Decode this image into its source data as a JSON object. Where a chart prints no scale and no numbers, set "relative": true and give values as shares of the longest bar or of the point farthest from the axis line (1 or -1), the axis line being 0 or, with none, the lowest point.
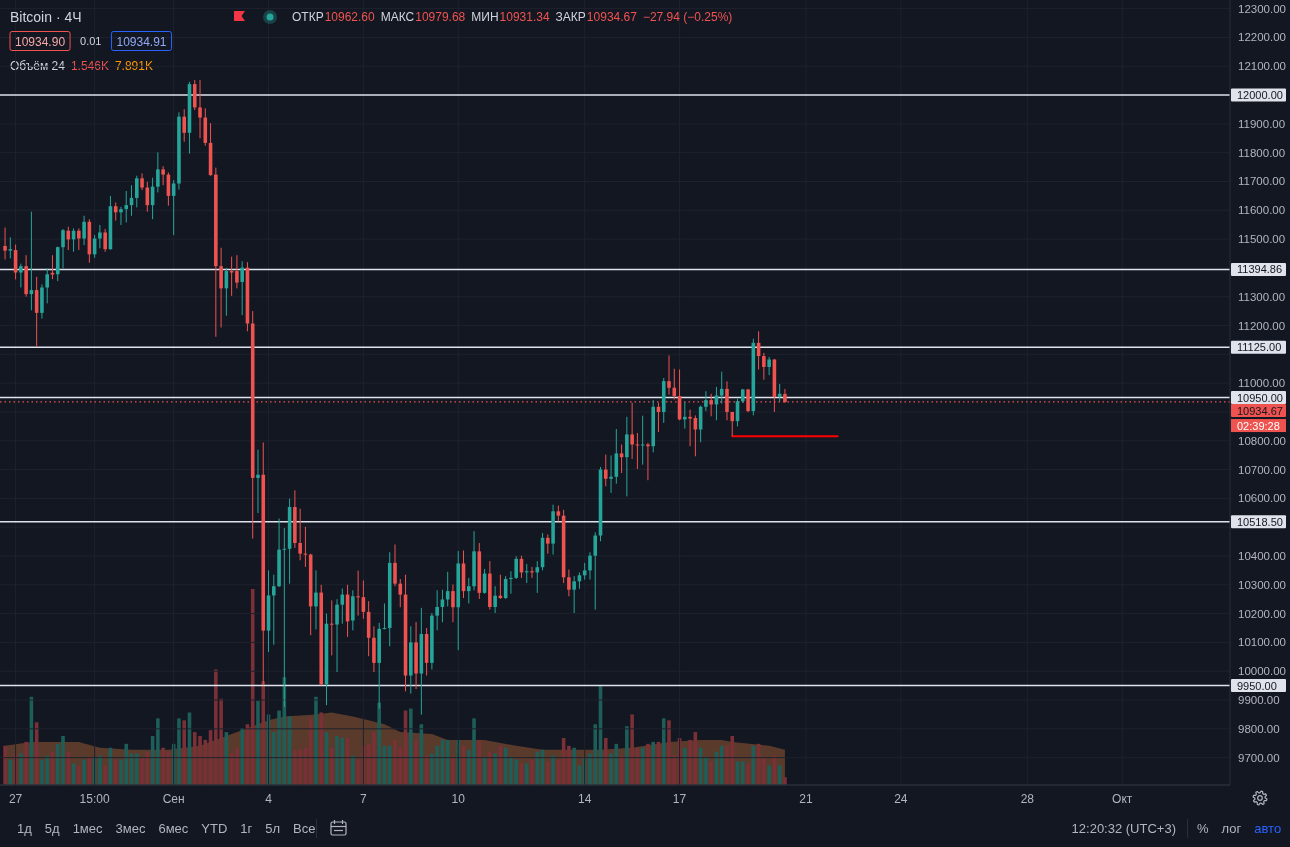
{
  "chart_data": [
    {
      "type": "candlestick",
      "title": "Bitcoin · 4Ч",
      "x": [
        "--08-26T19:00",
        "--08-26T23:00",
        "--08-27T03:00",
        "--08-27T07:00",
        "--08-27T11:00",
        "--08-27T15:00",
        "--08-27T19:00",
        "--08-27T23:00",
        "--08-28T03:00",
        "--08-28T07:00",
        "--08-28T11:00",
        "--08-28T15:00",
        "--08-28T19:00",
        "--08-28T23:00",
        "--08-29T03:00",
        "--08-29T07:00",
        "--08-29T11:00",
        "--08-29T15:00",
        "--08-29T19:00",
        "--08-29T23:00",
        "--08-30T03:00",
        "--08-30T07:00",
        "--08-30T11:00",
        "--08-30T15:00",
        "--08-30T19:00",
        "--08-30T23:00",
        "--08-31T03:00",
        "--08-31T07:00",
        "--08-31T11:00",
        "--08-31T15:00",
        "--08-31T19:00",
        "--08-31T23:00",
        "--09-01T03:00",
        "--09-01T07:00",
        "--09-01T11:00",
        "--09-01T15:00",
        "--09-01T19:00",
        "--09-01T23:00",
        "--09-02T03:00",
        "--09-02T07:00",
        "--09-02T11:00",
        "--09-02T15:00",
        "--09-02T19:00",
        "--09-02T23:00",
        "--09-03T03:00",
        "--09-03T07:00",
        "--09-03T11:00",
        "--09-03T15:00",
        "--09-03T19:00",
        "--09-03T23:00",
        "--09-04T03:00",
        "--09-04T07:00",
        "--09-04T11:00",
        "--09-04T15:00",
        "--09-04T19:00",
        "--09-04T23:00",
        "--09-05T03:00",
        "--09-05T07:00",
        "--09-05T11:00",
        "--09-05T15:00",
        "--09-05T19:00",
        "--09-05T23:00",
        "--09-06T03:00",
        "--09-06T07:00",
        "--09-06T11:00",
        "--09-06T15:00",
        "--09-06T19:00",
        "--09-06T23:00",
        "--09-07T03:00",
        "--09-07T07:00",
        "--09-07T11:00",
        "--09-07T15:00",
        "--09-07T19:00",
        "--09-07T23:00",
        "--09-08T03:00",
        "--09-08T07:00",
        "--09-08T11:00",
        "--09-08T15:00",
        "--09-08T19:00",
        "--09-08T23:00",
        "--09-09T03:00",
        "--09-09T07:00",
        "--09-09T11:00",
        "--09-09T15:00",
        "--09-09T19:00",
        "--09-09T23:00",
        "--09-10T03:00",
        "--09-10T07:00",
        "--09-10T11:00",
        "--09-10T15:00",
        "--09-10T19:00",
        "--09-10T23:00",
        "--09-11T03:00",
        "--09-11T07:00",
        "--09-11T11:00",
        "--09-11T15:00",
        "--09-11T19:00",
        "--09-11T23:00",
        "--09-12T03:00",
        "--09-12T07:00",
        "--09-12T11:00",
        "--09-12T15:00",
        "--09-12T19:00",
        "--09-12T23:00",
        "--09-13T03:00",
        "--09-13T07:00",
        "--09-13T11:00",
        "--09-13T15:00",
        "--09-13T19:00",
        "--09-13T23:00",
        "--09-14T03:00",
        "--09-14T07:00",
        "--09-14T11:00",
        "--09-14T15:00",
        "--09-14T19:00",
        "--09-14T23:00",
        "--09-15T03:00",
        "--09-15T07:00",
        "--09-15T11:00",
        "--09-15T15:00",
        "--09-15T19:00",
        "--09-15T23:00",
        "--09-16T03:00",
        "--09-16T07:00",
        "--09-16T11:00",
        "--09-16T15:00",
        "--09-16T19:00",
        "--09-16T23:00",
        "--09-17T03:00",
        "--09-17T07:00",
        "--09-17T11:00",
        "--09-17T15:00",
        "--09-17T19:00",
        "--09-17T23:00",
        "--09-18T03:00",
        "--09-18T07:00",
        "--09-18T11:00",
        "--09-18T15:00",
        "--09-18T19:00",
        "--09-18T23:00",
        "--09-19T03:00",
        "--09-19T07:00",
        "--09-19T11:00",
        "--09-19T15:00",
        "--09-19T19:00",
        "--09-19T23:00",
        "--09-20T03:00",
        "--09-20T07:00",
        "--09-20T11:00"
      ],
      "ohlc": [
        [
          11476,
          11540,
          11429,
          11460
        ],
        [
          11460,
          11506,
          11433,
          11465
        ],
        [
          11462,
          11481,
          11360,
          11384
        ],
        [
          11384,
          11415,
          11332,
          11406
        ],
        [
          11406,
          11444,
          11300,
          11309
        ],
        [
          11309,
          11595,
          11253,
          11323
        ],
        [
          11323,
          11369,
          11126,
          11244
        ],
        [
          11244,
          11343,
          11224,
          11332
        ],
        [
          11332,
          11398,
          11277,
          11378
        ],
        [
          11383,
          11444,
          11361,
          11377
        ],
        [
          11378,
          11474,
          11354,
          11472
        ],
        [
          11472,
          11535,
          11398,
          11531
        ],
        [
          11529,
          11543,
          11462,
          11499
        ],
        [
          11499,
          11537,
          11456,
          11529
        ],
        [
          11529,
          11537,
          11462,
          11502
        ],
        [
          11502,
          11581,
          11479,
          11560
        ],
        [
          11560,
          11569,
          11418,
          11447
        ],
        [
          11447,
          11514,
          11435,
          11502
        ],
        [
          11502,
          11549,
          11468,
          11523
        ],
        [
          11523,
          11535,
          11456,
          11465
        ],
        [
          11465,
          11650,
          11463,
          11614
        ],
        [
          11614,
          11627,
          11564,
          11593
        ],
        [
          11593,
          11612,
          11549,
          11604
        ],
        [
          11604,
          11667,
          11558,
          11618
        ],
        [
          11618,
          11687,
          11581,
          11643
        ],
        [
          11643,
          11720,
          11610,
          11711
        ],
        [
          11711,
          11728,
          11670,
          11679
        ],
        [
          11679,
          11699,
          11595,
          11618
        ],
        [
          11618,
          11713,
          11569,
          11682
        ],
        [
          11682,
          11801,
          11662,
          11742
        ],
        [
          11742,
          11753,
          11687,
          11724
        ],
        [
          11724,
          11731,
          11616,
          11650
        ],
        [
          11650,
          11705,
          11514,
          11693
        ],
        [
          11693,
          11940,
          11672,
          11925
        ],
        [
          11925,
          11951,
          11838,
          11869
        ],
        [
          11869,
          12046,
          11797,
          12038
        ],
        [
          12038,
          12052,
          11948,
          11957
        ],
        [
          11957,
          12052,
          11850,
          11922
        ],
        [
          11922,
          11954,
          11824,
          11834
        ],
        [
          11834,
          11902,
          11720,
          11722
        ],
        [
          11724,
          11748,
          11161,
          11406
        ],
        [
          11406,
          11470,
          11193,
          11329
        ],
        [
          11329,
          11400,
          11234,
          11389
        ],
        [
          11389,
          11439,
          11303,
          11384
        ],
        [
          11389,
          11444,
          11329,
          11349
        ],
        [
          11351,
          11423,
          11236,
          11401
        ],
        [
          11401,
          11420,
          11180,
          11207
        ],
        [
          11207,
          11250,
          10460,
          10671
        ],
        [
          10671,
          10769,
          10549,
          10682
        ],
        [
          10682,
          10794,
          9951,
          10141
        ],
        [
          10141,
          10350,
          10067,
          10263
        ],
        [
          10263,
          10335,
          10092,
          10295
        ],
        [
          10295,
          10530,
          10292,
          10422
        ],
        [
          10422,
          10497,
          9876,
          10425
        ],
        [
          10425,
          10599,
          10304,
          10570
        ],
        [
          10570,
          10628,
          10428,
          10445
        ],
        [
          10445,
          10564,
          10385,
          10408
        ],
        [
          10408,
          10501,
          10362,
          10405
        ],
        [
          10405,
          10408,
          10125,
          10225
        ],
        [
          10225,
          10350,
          10145,
          10273
        ],
        [
          10273,
          10300,
          9951,
          9954
        ],
        [
          9954,
          10200,
          9882,
          10165
        ],
        [
          10165,
          10246,
          10055,
          10162
        ],
        [
          10162,
          10250,
          9997,
          10231
        ],
        [
          10231,
          10287,
          10165,
          10266
        ],
        [
          10266,
          10300,
          10119,
          10173
        ],
        [
          10176,
          10281,
          10142,
          10260
        ],
        [
          10260,
          10349,
          10193,
          10257
        ],
        [
          10257,
          10315,
          10182,
          10206
        ],
        [
          10206,
          10243,
          10052,
          10116
        ],
        [
          10116,
          10156,
          9997,
          10029
        ],
        [
          10029,
          10168,
          9870,
          10147
        ],
        [
          10147,
          10235,
          10145,
          10150
        ],
        [
          10150,
          10413,
          10087,
          10376
        ],
        [
          10376,
          10440,
          10295,
          10304
        ],
        [
          10304,
          10320,
          10222,
          10266
        ],
        [
          10266,
          10335,
          9930,
          9985
        ],
        [
          9985,
          10156,
          9922,
          10100
        ],
        [
          10100,
          10171,
          9938,
          9992
        ],
        [
          9992,
          10220,
          9849,
          10129
        ],
        [
          10129,
          10150,
          9985,
          10029
        ],
        [
          10029,
          10202,
          10006,
          10193
        ],
        [
          10193,
          10281,
          10142,
          10223
        ],
        [
          10223,
          10283,
          10170,
          10249
        ],
        [
          10249,
          10345,
          10225,
          10278
        ],
        [
          10278,
          10301,
          10170,
          10222
        ],
        [
          10222,
          10417,
          10073,
          10374
        ],
        [
          10374,
          10419,
          10254,
          10278
        ],
        [
          10278,
          10324,
          10235,
          10295
        ],
        [
          10295,
          10486,
          10281,
          10416
        ],
        [
          10416,
          10445,
          10251,
          10272
        ],
        [
          10272,
          10355,
          10269,
          10339
        ],
        [
          10339,
          10382,
          10214,
          10223
        ],
        [
          10223,
          10295,
          10202,
          10262
        ],
        [
          10262,
          10335,
          10251,
          10254
        ],
        [
          10254,
          10330,
          10251,
          10320
        ],
        [
          10320,
          10347,
          10269,
          10324
        ],
        [
          10324,
          10399,
          10320,
          10390
        ],
        [
          10390,
          10401,
          10324,
          10343
        ],
        [
          10343,
          10372,
          10306,
          10347
        ],
        [
          10347,
          10362,
          10324,
          10343
        ],
        [
          10343,
          10382,
          10272,
          10361
        ],
        [
          10361,
          10480,
          10350,
          10463
        ],
        [
          10463,
          10475,
          10408,
          10443
        ],
        [
          10443,
          10578,
          10405,
          10555
        ],
        [
          10555,
          10575,
          10520,
          10540
        ],
        [
          10540,
          10560,
          10306,
          10326
        ],
        [
          10326,
          10353,
          10260,
          10283
        ],
        [
          10283,
          10330,
          10202,
          10312
        ],
        [
          10312,
          10343,
          10286,
          10333
        ],
        [
          10333,
          10376,
          10318,
          10350
        ],
        [
          10350,
          10413,
          10318,
          10401
        ],
        [
          10401,
          10482,
          10214,
          10471
        ],
        [
          10471,
          10709,
          10451,
          10700
        ],
        [
          10700,
          10752,
          10642,
          10668
        ],
        [
          10668,
          10749,
          10619,
          10675
        ],
        [
          10675,
          10841,
          10651,
          10756
        ],
        [
          10756,
          10787,
          10688,
          10743
        ],
        [
          10743,
          10883,
          10607,
          10822
        ],
        [
          10822,
          10932,
          10737,
          10787
        ],
        [
          10787,
          10827,
          10702,
          10784
        ],
        [
          10784,
          10887,
          10717,
          10787
        ],
        [
          10787,
          10793,
          10663,
          10781
        ],
        [
          10781,
          10941,
          10760,
          10918
        ],
        [
          10918,
          10932,
          10830,
          10900
        ],
        [
          10900,
          11018,
          10862,
          11007
        ],
        [
          11007,
          11096,
          10960,
          10984
        ],
        [
          10984,
          11050,
          10943,
          10955
        ],
        [
          10955,
          11047,
          10871,
          10874
        ],
        [
          10874,
          10934,
          10842,
          10883
        ],
        [
          10883,
          10908,
          10781,
          10877
        ],
        [
          10879,
          10888,
          10746,
          10839
        ],
        [
          10839,
          10922,
          10795,
          10918
        ],
        [
          10918,
          10972,
          10903,
          10941
        ],
        [
          10941,
          10963,
          10885,
          10926
        ],
        [
          10926,
          10987,
          10871,
          10957
        ],
        [
          10957,
          11040,
          10929,
          10980
        ],
        [
          10980,
          11006,
          10871,
          10900
        ],
        [
          10900,
          10900,
          10816,
          10868
        ],
        [
          10868,
          10946,
          10850,
          10937
        ],
        [
          10937,
          10980,
          10931,
          10978
        ],
        [
          10978,
          10980,
          10899,
          10903
        ],
        [
          10903,
          11154,
          10888,
          11140
        ],
        [
          11140,
          11180,
          11047,
          11094
        ],
        [
          11094,
          11105,
          11012,
          11056
        ],
        [
          11056,
          11091,
          11028,
          11082
        ],
        [
          11082,
          11084,
          10900,
          10952
        ],
        [
          10952,
          10997,
          10937,
          10963
        ],
        [
          10962.6,
          10979.68,
          10931.34,
          10934.67
        ]
      ],
      "colors": [
        "#ef5350",
        "#26a69a",
        "#ef5350",
        "#26a69a",
        "#ef5350",
        "#26a69a",
        "#ef5350",
        "#26a69a",
        "#26a69a",
        "#ef5350",
        "#26a69a",
        "#26a69a",
        "#ef5350",
        "#26a69a",
        "#ef5350",
        "#26a69a",
        "#ef5350",
        "#26a69a",
        "#26a69a",
        "#ef5350",
        "#26a69a",
        "#ef5350",
        "#26a69a",
        "#26a69a",
        "#26a69a",
        "#26a69a",
        "#ef5350",
        "#ef5350",
        "#26a69a",
        "#26a69a",
        "#ef5350",
        "#ef5350",
        "#26a69a",
        "#26a69a",
        "#ef5350",
        "#26a69a",
        "#ef5350",
        "#ef5350",
        "#ef5350",
        "#ef5350",
        "#ef5350",
        "#ef5350",
        "#26a69a",
        "#ef5350",
        "#ef5350",
        "#26a69a",
        "#ef5350",
        "#ef5350",
        "#26a69a",
        "#ef5350",
        "#26a69a",
        "#26a69a",
        "#26a69a",
        "#26a69a",
        "#26a69a",
        "#ef5350",
        "#ef5350",
        "#ef5350",
        "#ef5350",
        "#26a69a",
        "#ef5350",
        "#26a69a",
        "#ef5350",
        "#26a69a",
        "#26a69a",
        "#ef5350",
        "#26a69a",
        "#ef5350",
        "#ef5350",
        "#ef5350",
        "#ef5350",
        "#26a69a",
        "#26a69a",
        "#26a69a",
        "#ef5350",
        "#ef5350",
        "#ef5350",
        "#26a69a",
        "#ef5350",
        "#26a69a",
        "#ef5350",
        "#26a69a",
        "#26a69a",
        "#26a69a",
        "#26a69a",
        "#ef5350",
        "#26a69a",
        "#ef5350",
        "#26a69a",
        "#26a69a",
        "#ef5350",
        "#26a69a",
        "#ef5350",
        "#26a69a",
        "#ef5350",
        "#26a69a",
        "#26a69a",
        "#26a69a",
        "#ef5350",
        "#26a69a",
        "#ef5350",
        "#26a69a",
        "#26a69a",
        "#ef5350",
        "#26a69a",
        "#ef5350",
        "#ef5350",
        "#ef5350",
        "#26a69a",
        "#26a69a",
        "#26a69a",
        "#26a69a",
        "#26a69a",
        "#26a69a",
        "#ef5350",
        "#26a69a",
        "#26a69a",
        "#ef5350",
        "#26a69a",
        "#ef5350",
        "#ef5350",
        "#26a69a",
        "#ef5350",
        "#26a69a",
        "#ef5350",
        "#26a69a",
        "#ef5350",
        "#ef5350",
        "#ef5350",
        "#26a69a",
        "#ef5350",
        "#ef5350",
        "#26a69a",
        "#26a69a",
        "#ef5350",
        "#26a69a",
        "#26a69a",
        "#ef5350",
        "#ef5350",
        "#26a69a",
        "#26a69a",
        "#ef5350",
        "#26a69a",
        "#ef5350",
        "#ef5350",
        "#26a69a",
        "#ef5350",
        "#26a69a",
        "#ef5350"
      ],
      "series": [
        {
          "type": "line",
          "x": [
            "--09-18T19:00",
            "--09-22T03:00"
          ],
          "values": [
            10816,
            10816
          ],
          "color": "#ff0000"
        }
      ],
      "xlim": [
        "--08-26T15:10",
        "--10-04T12:50"
      ],
      "xticks": [
        {
          "value": "--08-27T03:00",
          "label": "27"
        },
        {
          "value": "--08-29T15:00",
          "label": "15:00"
        },
        {
          "value": "--09-01T03:00",
          "label": "Сен"
        },
        {
          "value": "--09-04T03:00",
          "label": "4"
        },
        {
          "value": "--09-07T03:00",
          "label": "7"
        },
        {
          "value": "--09-10T03:00",
          "label": "10"
        },
        {
          "value": "--09-14T03:00",
          "label": "14"
        },
        {
          "value": "--09-17T03:00",
          "label": "17"
        },
        {
          "value": "--09-21T03:00",
          "label": "21"
        },
        {
          "value": "--09-24T03:00",
          "label": "24"
        },
        {
          "value": "--09-28T03:00",
          "label": "28"
        },
        {
          "value": "--10-01T03:00",
          "label": "Окт"
        }
      ],
      "ylim": [
        9605,
        12330
      ],
      "yticks": [
        {
          "value": 9700,
          "label": "9700.00"
        },
        {
          "value": 9800,
          "label": "9800.00"
        },
        {
          "value": 9900,
          "label": "9900.00"
        },
        {
          "value": 10000,
          "label": "10000.00"
        },
        {
          "value": 10100,
          "label": "10100.00"
        },
        {
          "value": 10200,
          "label": "10200.00"
        },
        {
          "value": 10300,
          "label": "10300.00"
        },
        {
          "value": 10400,
          "label": "10400.00"
        },
        {
          "value": 10500,
          "label": null
        },
        {
          "value": 10600,
          "label": "10600.00"
        },
        {
          "value": 10700,
          "label": "10700.00"
        },
        {
          "value": 10800,
          "label": "10800.00"
        },
        {
          "value": 10900,
          "label": null
        },
        {
          "value": 11000,
          "label": "11000.00"
        },
        {
          "value": 11100,
          "label": null
        },
        {
          "value": 11200,
          "label": "11200.00"
        },
        {
          "value": 11300,
          "label": "11300.00"
        },
        {
          "value": 11500,
          "label": "11500.00"
        },
        {
          "value": 11600,
          "label": "11600.00"
        },
        {
          "value": 11700,
          "label": "11700.00"
        },
        {
          "value": 11800,
          "label": "11800.00"
        },
        {
          "value": 11900,
          "label": "11900.00"
        },
        {
          "value": 12100,
          "label": "12100.00"
        },
        {
          "value": 12200,
          "label": "12200.00"
        },
        {
          "value": 12300,
          "label": "12300.00"
        }
      ],
      "grid": true,
      "ref_lines": [
        {
          "axis": "y",
          "value": 12000,
          "label": "12000.00",
          "color": "#e0e3eb"
        },
        {
          "axis": "y",
          "value": 11394.86,
          "label": "11394.86",
          "color": "#e0e3eb"
        },
        {
          "axis": "y",
          "value": 11125,
          "label": "11125.00",
          "color": "#e0e3eb"
        },
        {
          "axis": "y",
          "value": 10950,
          "label": "10950.00",
          "color": "#e0e3eb"
        },
        {
          "axis": "y",
          "value": 10518.5,
          "label": "10518.50",
          "color": "#e0e3eb"
        },
        {
          "axis": "y",
          "value": 9950,
          "label": "9950.00",
          "color": "#e0e3eb"
        },
        {
          "axis": "y",
          "value": 10934.67,
          "label": "10934.67",
          "color": "#ef5350",
          "line_style": "dotted"
        }
      ],
      "annotations": [
        "ОТКР",
        "10962.60",
        "МАКС",
        "10979.68",
        "МИН",
        "10931.34",
        "ЗАКР",
        "10934.67",
        "−27.94 (−0.25%)",
        "10934.90",
        "0.01",
        "10934.91",
        "02:39:28",
        "1д",
        "5д",
        "1мес",
        "3мес",
        "6мес",
        "YTD",
        "1г",
        "5л",
        "Все",
        "12:20:32 (UTC+3)",
        "%",
        "лог",
        "авто"
      ]
    },
    {
      "type": "bar",
      "relative": true,
      "tick_labels": false,
      "x": [
        "--08-26T19:00",
        "--08-26T23:00",
        "--08-27T03:00",
        "--08-27T07:00",
        "--08-27T11:00",
        "--08-27T15:00",
        "--08-27T19:00",
        "--08-27T23:00",
        "--08-28T03:00",
        "--08-28T07:00",
        "--08-28T11:00",
        "--08-28T15:00",
        "--08-28T19:00",
        "--08-28T23:00",
        "--08-29T03:00",
        "--08-29T07:00",
        "--08-29T11:00",
        "--08-29T15:00",
        "--08-29T19:00",
        "--08-29T23:00",
        "--08-30T03:00",
        "--08-30T07:00",
        "--08-30T11:00",
        "--08-30T15:00",
        "--08-30T19:00",
        "--08-30T23:00",
        "--08-31T03:00",
        "--08-31T07:00",
        "--08-31T11:00",
        "--08-31T15:00",
        "--08-31T19:00",
        "--08-31T23:00",
        "--09-01T03:00",
        "--09-01T07:00",
        "--09-01T11:00",
        "--09-01T15:00",
        "--09-01T19:00",
        "--09-01T23:00",
        "--09-02T03:00",
        "--09-02T07:00",
        "--09-02T11:00",
        "--09-02T15:00",
        "--09-02T19:00",
        "--09-02T23:00",
        "--09-03T03:00",
        "--09-03T07:00",
        "--09-03T11:00",
        "--09-03T15:00",
        "--09-03T19:00",
        "--09-03T23:00",
        "--09-04T03:00",
        "--09-04T07:00",
        "--09-04T11:00",
        "--09-04T15:00",
        "--09-04T19:00",
        "--09-04T23:00",
        "--09-05T03:00",
        "--09-05T07:00",
        "--09-05T11:00",
        "--09-05T15:00",
        "--09-05T19:00",
        "--09-05T23:00",
        "--09-06T03:00",
        "--09-06T07:00",
        "--09-06T11:00",
        "--09-06T15:00",
        "--09-06T19:00",
        "--09-06T23:00",
        "--09-07T03:00",
        "--09-07T07:00",
        "--09-07T11:00",
        "--09-07T15:00",
        "--09-07T19:00",
        "--09-07T23:00",
        "--09-08T03:00",
        "--09-08T07:00",
        "--09-08T11:00",
        "--09-08T15:00",
        "--09-08T19:00",
        "--09-08T23:00",
        "--09-09T03:00",
        "--09-09T07:00",
        "--09-09T11:00",
        "--09-09T15:00",
        "--09-09T19:00",
        "--09-09T23:00",
        "--09-10T03:00",
        "--09-10T07:00",
        "--09-10T11:00",
        "--09-10T15:00",
        "--09-10T19:00",
        "--09-10T23:00",
        "--09-11T03:00",
        "--09-11T07:00",
        "--09-11T11:00",
        "--09-11T15:00",
        "--09-11T19:00",
        "--09-11T23:00",
        "--09-12T03:00",
        "--09-12T07:00",
        "--09-12T11:00",
        "--09-12T15:00",
        "--09-12T19:00",
        "--09-12T23:00",
        "--09-13T03:00",
        "--09-13T07:00",
        "--09-13T11:00",
        "--09-13T15:00",
        "--09-13T19:00",
        "--09-13T23:00",
        "--09-14T03:00",
        "--09-14T07:00",
        "--09-14T11:00",
        "--09-14T15:00",
        "--09-14T19:00",
        "--09-14T23:00",
        "--09-15T03:00",
        "--09-15T07:00",
        "--09-15T11:00",
        "--09-15T15:00",
        "--09-15T19:00",
        "--09-15T23:00",
        "--09-16T03:00",
        "--09-16T07:00",
        "--09-16T11:00",
        "--09-16T15:00",
        "--09-16T19:00",
        "--09-16T23:00",
        "--09-17T03:00",
        "--09-17T07:00",
        "--09-17T11:00",
        "--09-17T15:00",
        "--09-17T19:00",
        "--09-17T23:00",
        "--09-18T03:00",
        "--09-18T07:00",
        "--09-18T11:00",
        "--09-18T15:00",
        "--09-18T19:00",
        "--09-18T23:00",
        "--09-19T03:00",
        "--09-19T07:00",
        "--09-19T11:00",
        "--09-19T15:00",
        "--09-19T19:00",
        "--09-19T23:00",
        "--09-20T03:00",
        "--09-20T07:00",
        "--09-20T11:00"
      ],
      "xlim": [
        "--08-26T15:10",
        "--10-04T12:50"
      ],
      "series": [
        {
          "type": "bar",
          "values": [
            0.2,
            0.13,
            0.16,
            0.16,
            0.22,
            0.45,
            0.32,
            0.13,
            0.15,
            0.17,
            0.21,
            0.25,
            0.17,
            0.11,
            0.1,
            0.13,
            0.14,
            0.14,
            0.15,
            0.1,
            0.19,
            0.13,
            0.13,
            0.21,
            0.16,
            0.16,
            0.14,
            0.17,
            0.25,
            0.34,
            0.19,
            0.17,
            0.21,
            0.34,
            0.33,
            0.37,
            0.27,
            0.25,
            0.23,
            0.28,
            0.59,
            0.44,
            0.27,
            0.16,
            0.19,
            0.29,
            0.31,
            1,
            0.43,
            0.53,
            0.36,
            0.27,
            0.38,
            0.55,
            0.35,
            0.18,
            0.18,
            0.19,
            0.34,
            0.45,
            0.37,
            0.27,
            0.19,
            0.25,
            0.24,
            0.24,
            0.15,
            0.13,
            0.2,
            0.21,
            0.27,
            0.42,
            0.2,
            0.2,
            0.23,
            0.19,
            0.38,
            0.39,
            0.23,
            0.31,
            0.15,
            0.16,
            0.2,
            0.23,
            0.23,
            0.14,
            0.23,
            0.2,
            0.18,
            0.34,
            0.23,
            0.14,
            0.17,
            0.16,
            0.2,
            0.19,
            0.14,
            0.13,
            0.11,
            0.11,
            0.13,
            0.17,
            0.18,
            0.12,
            0.15,
            0.13,
            0.24,
            0.2,
            0.19,
            0.1,
            0.14,
            0.16,
            0.31,
            0.51,
            0.24,
            0.16,
            0.21,
            0.15,
            0.3,
            0.36,
            0.19,
            0.19,
            0.21,
            0.22,
            0.22,
            0.34,
            0.33,
            0.15,
            0.24,
            0.19,
            0.23,
            0.27,
            0.19,
            0.14,
            0.12,
            0.17,
            0.2,
            0.2,
            0.25,
            0.12,
            0.12,
            0.11,
            0.2,
            0.21,
            0.14,
            0.1,
            0.15,
            0.1,
            0.04
          ],
          "colors": [
            "#7a3036",
            "#1d5e59",
            "#7a3036",
            "#1d5e59",
            "#7a3036",
            "#1d5e59",
            "#7a3036",
            "#1d5e59",
            "#1d5e59",
            "#7a3036",
            "#1d5e59",
            "#1d5e59",
            "#7a3036",
            "#1d5e59",
            "#7a3036",
            "#1d5e59",
            "#7a3036",
            "#1d5e59",
            "#1d5e59",
            "#7a3036",
            "#1d5e59",
            "#7a3036",
            "#1d5e59",
            "#1d5e59",
            "#1d5e59",
            "#1d5e59",
            "#7a3036",
            "#7a3036",
            "#1d5e59",
            "#1d5e59",
            "#7a3036",
            "#7a3036",
            "#1d5e59",
            "#1d5e59",
            "#7a3036",
            "#1d5e59",
            "#7a3036",
            "#7a3036",
            "#7a3036",
            "#7a3036",
            "#7a3036",
            "#7a3036",
            "#1d5e59",
            "#7a3036",
            "#7a3036",
            "#1d5e59",
            "#7a3036",
            "#7a3036",
            "#1d5e59",
            "#7a3036",
            "#1d5e59",
            "#1d5e59",
            "#1d5e59",
            "#1d5e59",
            "#1d5e59",
            "#7a3036",
            "#7a3036",
            "#7a3036",
            "#7a3036",
            "#1d5e59",
            "#7a3036",
            "#1d5e59",
            "#7a3036",
            "#1d5e59",
            "#1d5e59",
            "#7a3036",
            "#1d5e59",
            "#7a3036",
            "#7a3036",
            "#7a3036",
            "#7a3036",
            "#1d5e59",
            "#1d5e59",
            "#1d5e59",
            "#7a3036",
            "#7a3036",
            "#7a3036",
            "#1d5e59",
            "#7a3036",
            "#1d5e59",
            "#7a3036",
            "#1d5e59",
            "#1d5e59",
            "#1d5e59",
            "#1d5e59",
            "#7a3036",
            "#1d5e59",
            "#7a3036",
            "#1d5e59",
            "#1d5e59",
            "#7a3036",
            "#1d5e59",
            "#7a3036",
            "#1d5e59",
            "#7a3036",
            "#1d5e59",
            "#1d5e59",
            "#1d5e59",
            "#7a3036",
            "#1d5e59",
            "#7a3036",
            "#1d5e59",
            "#1d5e59",
            "#7a3036",
            "#1d5e59",
            "#7a3036",
            "#7a3036",
            "#7a3036",
            "#1d5e59",
            "#1d5e59",
            "#1d5e59",
            "#1d5e59",
            "#1d5e59",
            "#1d5e59",
            "#7a3036",
            "#1d5e59",
            "#1d5e59",
            "#7a3036",
            "#1d5e59",
            "#7a3036",
            "#7a3036",
            "#1d5e59",
            "#7a3036",
            "#1d5e59",
            "#7a3036",
            "#1d5e59",
            "#7a3036",
            "#7a3036",
            "#7a3036",
            "#1d5e59",
            "#7a3036",
            "#7a3036",
            "#1d5e59",
            "#1d5e59",
            "#7a3036",
            "#1d5e59",
            "#1d5e59",
            "#7a3036",
            "#7a3036",
            "#1d5e59",
            "#1d5e59",
            "#7a3036",
            "#1d5e59",
            "#7a3036",
            "#7a3036",
            "#1d5e59",
            "#7a3036",
            "#1d5e59",
            "#7a3036"
          ]
        },
        {
          "type": "area",
          "x": [
            "--08-26T19:00",
            "--08-27T15:00",
            "--08-29T03:00",
            "--08-29T19:00",
            "--08-30T19:00",
            "--08-31T23:00",
            "--09-01T23:00",
            "--09-02T19:00",
            "--09-03T15:00",
            "--09-04T03:00",
            "--09-04T15:00",
            "--09-05T15:00",
            "--09-06T03:00",
            "--09-06T19:00",
            "--09-07T07:00",
            "--09-07T19:00",
            "--09-08T07:00",
            "--09-09T07:00",
            "--09-09T19:00",
            "--09-10T23:00",
            "--09-11T23:00",
            "--09-12T19:00",
            "--09-13T15:00",
            "--09-14T15:00",
            "--09-15T15:00",
            "--09-16T19:00",
            "--09-17T19:00",
            "--09-18T11:00",
            "--09-18T19:00",
            "--09-19T23:00",
            "--09-20T11:00"
          ],
          "values": [
            0.2,
            0.22,
            0.22,
            0.19,
            0.18,
            0.18,
            0.2,
            0.25,
            0.3,
            0.33,
            0.35,
            0.36,
            0.37,
            0.35,
            0.33,
            0.31,
            0.27,
            0.26,
            0.23,
            0.23,
            0.2,
            0.18,
            0.18,
            0.18,
            0.19,
            0.22,
            0.23,
            0.23,
            0.22,
            0.2,
            0.18
          ],
          "color": "#5a3b2b"
        }
      ],
      "annotations": [
        "Объём 24",
        "1.546K",
        "7.891K"
      ]
    }
  ]
}
